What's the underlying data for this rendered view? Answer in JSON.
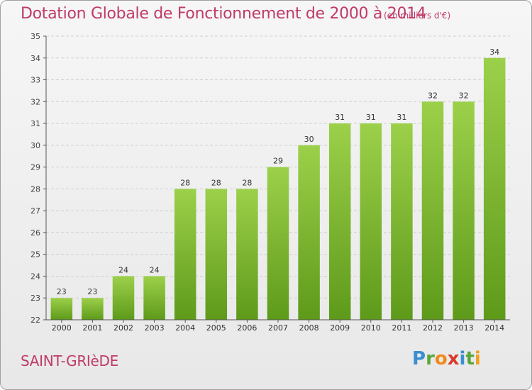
{
  "title": "Dotation Globale de Fonctionnement de 2000 à 2014",
  "unit_label": "(en milliers d'€)",
  "commune": "SAINT-GRIèDE",
  "logo": {
    "letters": [
      "P",
      "r",
      "o",
      "x",
      "i",
      "t",
      "i"
    ],
    "colors": [
      "#3a8fd0",
      "#5aa63a",
      "#f08a1c",
      "#d83a2a",
      "#3a8fd0",
      "#5aa63a",
      "#f0a01c"
    ]
  },
  "colors": {
    "title": "#c03a6a",
    "bar_light": "#9cd04a",
    "bar_dark": "#5e9a1a",
    "grid": "#cfcfcf"
  },
  "chart_data": {
    "type": "bar",
    "categories": [
      "2000",
      "2001",
      "2002",
      "2003",
      "2004",
      "2005",
      "2006",
      "2007",
      "2008",
      "2009",
      "2010",
      "2011",
      "2012",
      "2013",
      "2014"
    ],
    "values": [
      23,
      23,
      24,
      24,
      28,
      28,
      28,
      29,
      30,
      31,
      31,
      31,
      32,
      32,
      34
    ],
    "ylim": [
      22,
      35
    ],
    "yticks": [
      22,
      23,
      24,
      25,
      26,
      27,
      28,
      29,
      30,
      31,
      32,
      33,
      34,
      35
    ],
    "grid": true,
    "xlabel": "",
    "ylabel": ""
  }
}
